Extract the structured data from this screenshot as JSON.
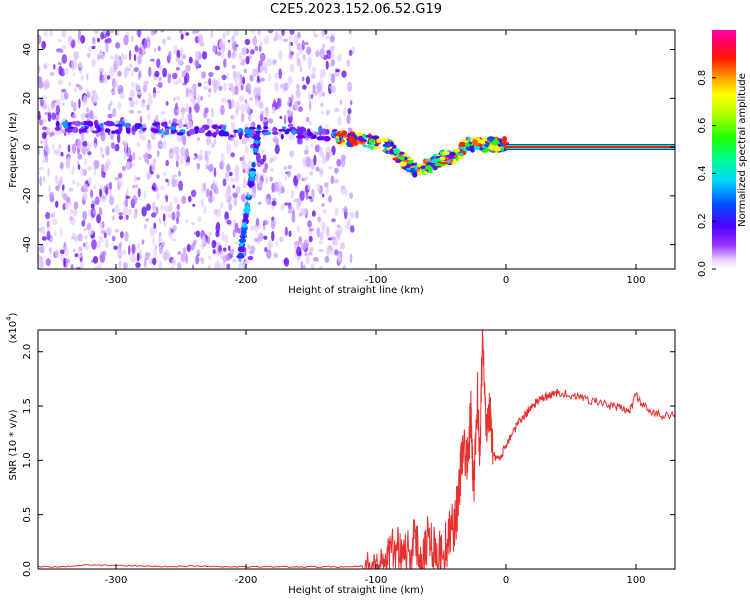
{
  "title": "C2E5.2023.152.06.52.G19",
  "colors": {
    "snr_line": "#e83030",
    "frame": "#000000",
    "background": "#ffffff"
  },
  "chart_data": [
    {
      "type": "heatmap",
      "name": "spectrogram",
      "xlabel": "Height of straight line (km)",
      "ylabel": "Frequency (Hz)",
      "xlim": [
        -360,
        130
      ],
      "ylim": [
        -50,
        48
      ],
      "x_ticks": [
        -300,
        -200,
        -100,
        0,
        100
      ],
      "y_ticks": [
        -40,
        -20,
        0,
        20,
        40
      ],
      "colorbar": {
        "label": "Normalized spectral amplitude",
        "range": [
          0.0,
          1.0
        ],
        "ticks": [
          0.0,
          0.2,
          0.4,
          0.6,
          0.8
        ],
        "tick_labels": [
          "0.0",
          "0.2",
          "0.4",
          "0.6",
          "0.8"
        ],
        "colormap": "rainbow (white → purple → blue → cyan → green → yellow → red → magenta)"
      },
      "features": [
        {
          "name": "carrier line",
          "x_range": [
            0,
            130
          ],
          "frequency": 0,
          "amplitude": 1.0
        },
        {
          "name": "main Doppler trace",
          "x": [
            -130,
            -110,
            -90,
            -80,
            -70,
            -60,
            -50,
            -40,
            -30,
            -20,
            -10,
            0
          ],
          "frequency": [
            4,
            3,
            0,
            -5,
            -9,
            -8,
            -5,
            -4,
            1,
            1,
            1,
            1
          ]
        },
        {
          "name": "weak trace",
          "x": [
            -345,
            -320,
            -280,
            -240,
            -200,
            -160,
            -130
          ],
          "frequency": [
            8,
            8,
            8,
            7,
            6,
            6,
            5
          ]
        },
        {
          "name": "diagonal streak",
          "x": [
            -205,
            -190
          ],
          "frequency": [
            -47,
            8
          ]
        }
      ]
    },
    {
      "type": "line",
      "name": "snr",
      "xlabel": "Height of straight line (km)",
      "ylabel": "SNR (10 * v/v)",
      "y_scale_label": "(x10",
      "y_scale_exponent": "4",
      "xlim": [
        -360,
        130
      ],
      "ylim": [
        0,
        2.2
      ],
      "x_ticks": [
        -300,
        -200,
        -100,
        0,
        100
      ],
      "y_ticks": [
        0.0,
        0.5,
        1.0,
        1.5,
        2.0
      ],
      "y_tick_labels": [
        "0.0",
        "0.5",
        "1.0",
        "1.5",
        "2.0"
      ],
      "series": [
        {
          "name": "SNR",
          "x": [
            -360,
            -340,
            -320,
            -300,
            -280,
            -260,
            -240,
            -220,
            -200,
            -180,
            -160,
            -140,
            -120,
            -110,
            -100,
            -95,
            -90,
            -85,
            -80,
            -75,
            -70,
            -65,
            -60,
            -55,
            -50,
            -45,
            -40,
            -37,
            -35,
            -33,
            -30,
            -27,
            -25,
            -22,
            -20,
            -18,
            -15,
            -12,
            -10,
            -5,
            0,
            5,
            10,
            15,
            20,
            25,
            30,
            35,
            40,
            50,
            60,
            70,
            80,
            90,
            95,
            100,
            110,
            120,
            130
          ],
          "values": [
            0.02,
            0.02,
            0.04,
            0.03,
            0.03,
            0.02,
            0.03,
            0.02,
            0.02,
            0.02,
            0.02,
            0.02,
            0.02,
            0.03,
            0.05,
            0.08,
            0.12,
            0.18,
            0.22,
            0.15,
            0.25,
            0.1,
            0.3,
            0.2,
            0.12,
            0.25,
            0.4,
            0.6,
            0.9,
            1.2,
            0.95,
            1.4,
            0.7,
            1.6,
            1.1,
            2.2,
            1.3,
            1.55,
            1.05,
            1.0,
            1.15,
            1.25,
            1.35,
            1.42,
            1.5,
            1.55,
            1.58,
            1.6,
            1.63,
            1.6,
            1.57,
            1.54,
            1.5,
            1.48,
            1.45,
            1.6,
            1.44,
            1.42,
            1.43
          ]
        }
      ]
    }
  ]
}
